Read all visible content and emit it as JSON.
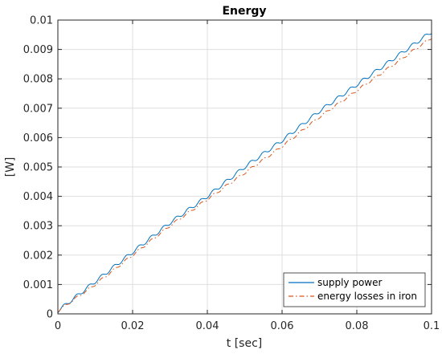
{
  "chart_data": {
    "type": "line",
    "title": "Energy",
    "xlabel": "t [sec]",
    "ylabel": "[W]",
    "xlim": [
      0,
      0.1
    ],
    "ylim": [
      0,
      0.01
    ],
    "xticks": [
      0,
      0.02,
      0.04,
      0.06,
      0.08,
      0.1
    ],
    "xtick_labels": [
      "0",
      "0.02",
      "0.04",
      "0.06",
      "0.08",
      "0.1"
    ],
    "yticks": [
      0,
      0.001,
      0.002,
      0.003,
      0.004,
      0.005,
      0.006,
      0.007,
      0.008,
      0.009,
      0.01
    ],
    "ytick_labels": [
      "0",
      "0.001",
      "0.002",
      "0.003",
      "0.004",
      "0.005",
      "0.006",
      "0.007",
      "0.008",
      "0.009",
      "0.01"
    ],
    "grid": true,
    "legend_position": "bottom-right",
    "series": [
      {
        "name": "supply power",
        "color": "#0072BD",
        "style": "solid",
        "x": [
          0,
          0.01,
          0.02,
          0.03,
          0.04,
          0.05,
          0.06,
          0.07,
          0.08,
          0.09,
          0.1
        ],
        "y": [
          0.0001,
          0.0011,
          0.0021,
          0.0031,
          0.004,
          0.005,
          0.0059,
          0.0069,
          0.0078,
          0.0087,
          0.0096
        ],
        "ripple_amplitude": 0.00012,
        "ripple_period": 0.00333
      },
      {
        "name": "energy losses in iron",
        "color": "#D95319",
        "style": "dashdot",
        "x": [
          0,
          0.01,
          0.02,
          0.03,
          0.04,
          0.05,
          0.06,
          0.07,
          0.08,
          0.09,
          0.1
        ],
        "y": [
          0.0001,
          0.001,
          0.002,
          0.003,
          0.0039,
          0.0048,
          0.0057,
          0.0067,
          0.0076,
          0.0085,
          0.0094
        ],
        "ripple_amplitude": 8e-05,
        "ripple_period": 0.00333
      }
    ]
  }
}
